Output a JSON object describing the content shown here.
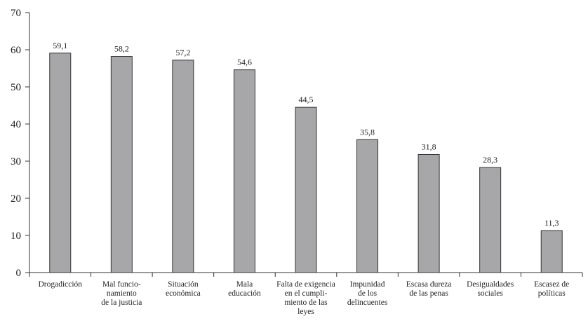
{
  "chart_data": {
    "type": "bar",
    "title": "",
    "xlabel": "",
    "ylabel": "",
    "categories": [
      [
        "Drogadicción"
      ],
      [
        "Mal funcio-",
        "namiento",
        "de la justicia"
      ],
      [
        "Situación",
        "económica"
      ],
      [
        "Mala",
        "educación"
      ],
      [
        "Falta de exigencia",
        "en el cumpli-",
        "miento de las",
        "leyes"
      ],
      [
        "Impunidad",
        "de los",
        "delincuentes"
      ],
      [
        "Escasa dureza",
        "de las penas"
      ],
      [
        "Desigualdades",
        "sociales"
      ],
      [
        "Escasez de",
        "políticas"
      ]
    ],
    "values": [
      59.1,
      58.2,
      57.2,
      54.6,
      44.5,
      35.8,
      31.8,
      28.3,
      11.3
    ],
    "value_labels": [
      "59,1",
      "58,2",
      "57,2",
      "54,6",
      "44,5",
      "35,8",
      "31,8",
      "28,3",
      "11,3"
    ],
    "ylim": [
      0,
      70
    ],
    "yticks": [
      0,
      10,
      20,
      30,
      40,
      50,
      60,
      70
    ],
    "ytick_labels": [
      "0",
      "10",
      "20",
      "30",
      "40",
      "50",
      "60",
      "70"
    ],
    "grid": false,
    "legend": "none",
    "bar_color": "#a7a7aa",
    "bar_edge_color": "#333333"
  }
}
